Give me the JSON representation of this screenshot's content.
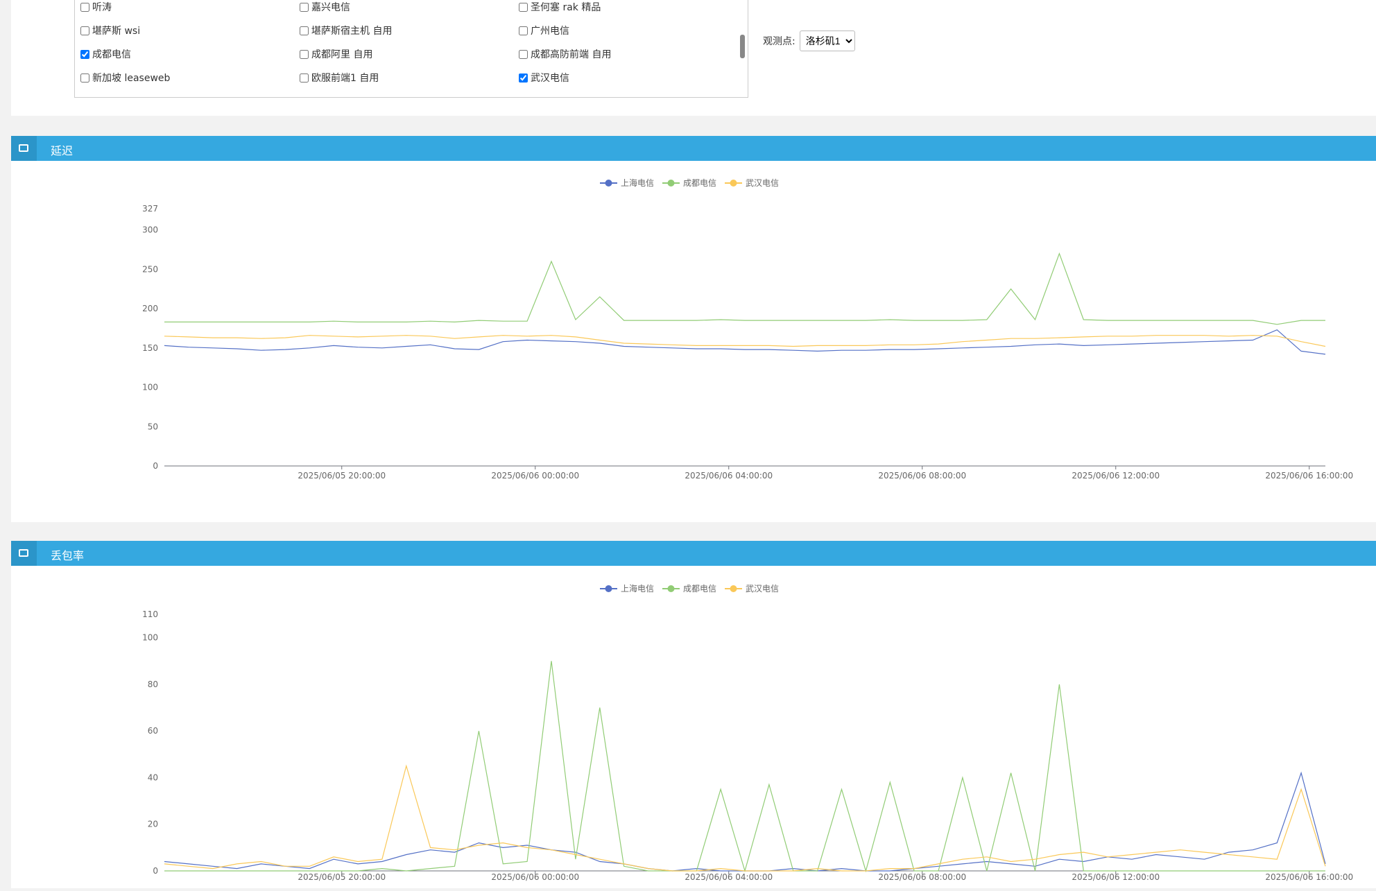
{
  "filter": {
    "checkboxes": [
      {
        "label": "听涛",
        "checked": false
      },
      {
        "label": "嘉兴电信",
        "checked": false
      },
      {
        "label": "圣何塞 rak 精品",
        "checked": false
      },
      {
        "label": "堪萨斯 wsi",
        "checked": false
      },
      {
        "label": "堪萨斯宿主机 自用",
        "checked": false
      },
      {
        "label": "广州电信",
        "checked": false
      },
      {
        "label": "成都电信",
        "checked": true
      },
      {
        "label": "成都阿里 自用",
        "checked": false
      },
      {
        "label": "成都高防前端 自用",
        "checked": false
      },
      {
        "label": "新加坡 leaseweb",
        "checked": false
      },
      {
        "label": "欧服前端1 自用",
        "checked": false
      },
      {
        "label": "武汉电信",
        "checked": true
      }
    ],
    "observer_label": "观测点:",
    "observer_value": "洛杉矶1"
  },
  "chart_data": [
    {
      "type": "line",
      "title": "延迟",
      "x": [
        "2025/06/05 16:20:00",
        "2025/06/05 16:50:00",
        "2025/06/05 17:20:00",
        "2025/06/05 17:50:00",
        "2025/06/05 18:20:00",
        "2025/06/05 18:50:00",
        "2025/06/05 19:20:00",
        "2025/06/05 19:50:00",
        "2025/06/05 20:20:00",
        "2025/06/05 20:50:00",
        "2025/06/05 21:20:00",
        "2025/06/05 21:50:00",
        "2025/06/05 22:20:00",
        "2025/06/05 22:50:00",
        "2025/06/05 23:20:00",
        "2025/06/05 23:50:00",
        "2025/06/06 00:20:00",
        "2025/06/06 00:50:00",
        "2025/06/06 01:20:00",
        "2025/06/06 01:50:00",
        "2025/06/06 02:20:00",
        "2025/06/06 02:50:00",
        "2025/06/06 03:20:00",
        "2025/06/06 03:50:00",
        "2025/06/06 04:20:00",
        "2025/06/06 04:50:00",
        "2025/06/06 05:20:00",
        "2025/06/06 05:50:00",
        "2025/06/06 06:20:00",
        "2025/06/06 06:50:00",
        "2025/06/06 07:20:00",
        "2025/06/06 07:50:00",
        "2025/06/06 08:20:00",
        "2025/06/06 08:50:00",
        "2025/06/06 09:20:00",
        "2025/06/06 09:50:00",
        "2025/06/06 10:20:00",
        "2025/06/06 10:50:00",
        "2025/06/06 11:20:00",
        "2025/06/06 11:50:00",
        "2025/06/06 12:20:00",
        "2025/06/06 12:50:00",
        "2025/06/06 13:20:00",
        "2025/06/06 13:50:00",
        "2025/06/06 14:20:00",
        "2025/06/06 14:50:00",
        "2025/06/06 15:20:00",
        "2025/06/06 15:50:00",
        "2025/06/06 16:20:00"
      ],
      "xlim": [
        "2025/06/05 16:20:00",
        "2025/06/06 16:20:00"
      ],
      "xticks": [
        "2025/06/05 20:00:00",
        "2025/06/06 00:00:00",
        "2025/06/06 04:00:00",
        "2025/06/06 08:00:00",
        "2025/06/06 12:00:00",
        "2025/06/06 16:00:00"
      ],
      "ylim": [
        0,
        327
      ],
      "yticks": [
        0,
        50,
        100,
        150,
        200,
        250,
        300,
        327
      ],
      "series": [
        {
          "name": "上海电信",
          "color": "#5470c6",
          "values": [
            153,
            151,
            150,
            149,
            147,
            148,
            150,
            153,
            151,
            150,
            152,
            154,
            149,
            148,
            158,
            160,
            159,
            158,
            156,
            152,
            151,
            150,
            149,
            149,
            148,
            148,
            147,
            146,
            147,
            147,
            148,
            148,
            149,
            150,
            151,
            152,
            154,
            155,
            153,
            154,
            155,
            156,
            157,
            158,
            159,
            160,
            173,
            146,
            142
          ]
        },
        {
          "name": "成都电信",
          "color": "#91cc75",
          "values": [
            183,
            183,
            183,
            183,
            183,
            183,
            183,
            184,
            183,
            183,
            183,
            184,
            183,
            185,
            184,
            184,
            260,
            186,
            215,
            185,
            185,
            185,
            185,
            186,
            185,
            185,
            185,
            185,
            185,
            185,
            186,
            185,
            185,
            185,
            186,
            225,
            186,
            270,
            186,
            185,
            185,
            185,
            185,
            185,
            185,
            185,
            180,
            185,
            185
          ]
        },
        {
          "name": "武汉电信",
          "color": "#fac858",
          "values": [
            165,
            164,
            163,
            163,
            162,
            163,
            166,
            165,
            164,
            165,
            166,
            165,
            162,
            164,
            166,
            165,
            166,
            164,
            160,
            156,
            155,
            154,
            153,
            153,
            153,
            153,
            152,
            153,
            153,
            153,
            154,
            154,
            155,
            158,
            160,
            162,
            162,
            163,
            164,
            165,
            165,
            166,
            166,
            166,
            165,
            166,
            165,
            158,
            152
          ]
        }
      ]
    },
    {
      "type": "line",
      "title": "丢包率",
      "x": [
        "2025/06/05 16:20:00",
        "2025/06/05 16:50:00",
        "2025/06/05 17:20:00",
        "2025/06/05 17:50:00",
        "2025/06/05 18:20:00",
        "2025/06/05 18:50:00",
        "2025/06/05 19:20:00",
        "2025/06/05 19:50:00",
        "2025/06/05 20:20:00",
        "2025/06/05 20:50:00",
        "2025/06/05 21:20:00",
        "2025/06/05 21:50:00",
        "2025/06/05 22:20:00",
        "2025/06/05 22:50:00",
        "2025/06/05 23:20:00",
        "2025/06/05 23:50:00",
        "2025/06/06 00:20:00",
        "2025/06/06 00:50:00",
        "2025/06/06 01:20:00",
        "2025/06/06 01:50:00",
        "2025/06/06 02:20:00",
        "2025/06/06 02:50:00",
        "2025/06/06 03:20:00",
        "2025/06/06 03:50:00",
        "2025/06/06 04:20:00",
        "2025/06/06 04:50:00",
        "2025/06/06 05:20:00",
        "2025/06/06 05:50:00",
        "2025/06/06 06:20:00",
        "2025/06/06 06:50:00",
        "2025/06/06 07:20:00",
        "2025/06/06 07:50:00",
        "2025/06/06 08:20:00",
        "2025/06/06 08:50:00",
        "2025/06/06 09:20:00",
        "2025/06/06 09:50:00",
        "2025/06/06 10:20:00",
        "2025/06/06 10:50:00",
        "2025/06/06 11:20:00",
        "2025/06/06 11:50:00",
        "2025/06/06 12:20:00",
        "2025/06/06 12:50:00",
        "2025/06/06 13:20:00",
        "2025/06/06 13:50:00",
        "2025/06/06 14:20:00",
        "2025/06/06 14:50:00",
        "2025/06/06 15:20:00",
        "2025/06/06 15:50:00",
        "2025/06/06 16:20:00"
      ],
      "xlim": [
        "2025/06/05 16:20:00",
        "2025/06/06 16:20:00"
      ],
      "xticks": [
        "2025/06/05 20:00:00",
        "2025/06/06 00:00:00",
        "2025/06/06 04:00:00",
        "2025/06/06 08:00:00",
        "2025/06/06 12:00:00",
        "2025/06/06 16:00:00"
      ],
      "ylim": [
        0,
        110
      ],
      "yticks": [
        0,
        20,
        40,
        60,
        80,
        100,
        110
      ],
      "series": [
        {
          "name": "上海电信",
          "color": "#5470c6",
          "values": [
            4,
            3,
            2,
            1,
            3,
            2,
            1,
            5,
            3,
            4,
            7,
            9,
            8,
            12,
            10,
            11,
            9,
            8,
            4,
            3,
            1,
            0,
            1,
            0,
            0,
            0,
            1,
            0,
            1,
            0,
            0,
            1,
            2,
            3,
            4,
            3,
            2,
            5,
            4,
            6,
            5,
            7,
            6,
            5,
            8,
            9,
            12,
            42,
            3
          ]
        },
        {
          "name": "成都电信",
          "color": "#91cc75",
          "values": [
            0,
            0,
            0,
            0,
            0,
            0,
            0,
            0,
            0,
            1,
            0,
            1,
            2,
            60,
            3,
            4,
            90,
            5,
            70,
            2,
            0,
            0,
            0,
            35,
            0,
            37,
            0,
            0,
            35,
            0,
            38,
            0,
            0,
            40,
            0,
            42,
            0,
            80,
            0,
            0,
            0,
            0,
            0,
            0,
            0,
            0,
            0,
            0,
            0
          ]
        },
        {
          "name": "武汉电信",
          "color": "#fac858",
          "values": [
            3,
            2,
            1,
            3,
            4,
            2,
            2,
            6,
            4,
            5,
            45,
            10,
            9,
            11,
            12,
            10,
            9,
            7,
            5,
            3,
            1,
            0,
            0,
            1,
            0,
            0,
            0,
            1,
            0,
            0,
            1,
            1,
            3,
            5,
            6,
            4,
            5,
            7,
            8,
            6,
            7,
            8,
            9,
            8,
            7,
            6,
            5,
            35,
            2
          ]
        }
      ]
    }
  ]
}
